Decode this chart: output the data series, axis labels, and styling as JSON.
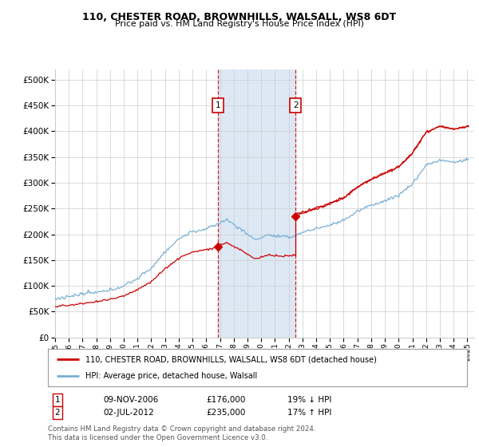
{
  "title1": "110, CHESTER ROAD, BROWNHILLS, WALSALL, WS8 6DT",
  "title2": "Price paid vs. HM Land Registry's House Price Index (HPI)",
  "legend_line1": "110, CHESTER ROAD, BROWNHILLS, WALSALL, WS8 6DT (detached house)",
  "legend_line2": "HPI: Average price, detached house, Walsall",
  "footnote": "Contains HM Land Registry data © Crown copyright and database right 2024.\nThis data is licensed under the Open Government Licence v3.0.",
  "sale1_label": "1",
  "sale2_label": "2",
  "sale1_date": "09-NOV-2006",
  "sale1_price": "£176,000",
  "sale1_hpi": "19% ↓ HPI",
  "sale1_year": 2006.83,
  "sale2_date": "02-JUL-2012",
  "sale2_price": "£235,000",
  "sale2_hpi": "17% ↑ HPI",
  "sale2_year": 2012.5,
  "sale1_value": 176000,
  "sale2_value": 235000,
  "red_color": "#cc0000",
  "blue_color": "#7aafd4",
  "shading_color": "#dce9f5",
  "grid_color": "#cccccc",
  "background_color": "#ffffff",
  "ylim": [
    0,
    520000
  ],
  "yticks": [
    0,
    50000,
    100000,
    150000,
    200000,
    250000,
    300000,
    350000,
    400000,
    450000,
    500000
  ],
  "xlim_start": 1995.0,
  "xlim_end": 2025.5
}
